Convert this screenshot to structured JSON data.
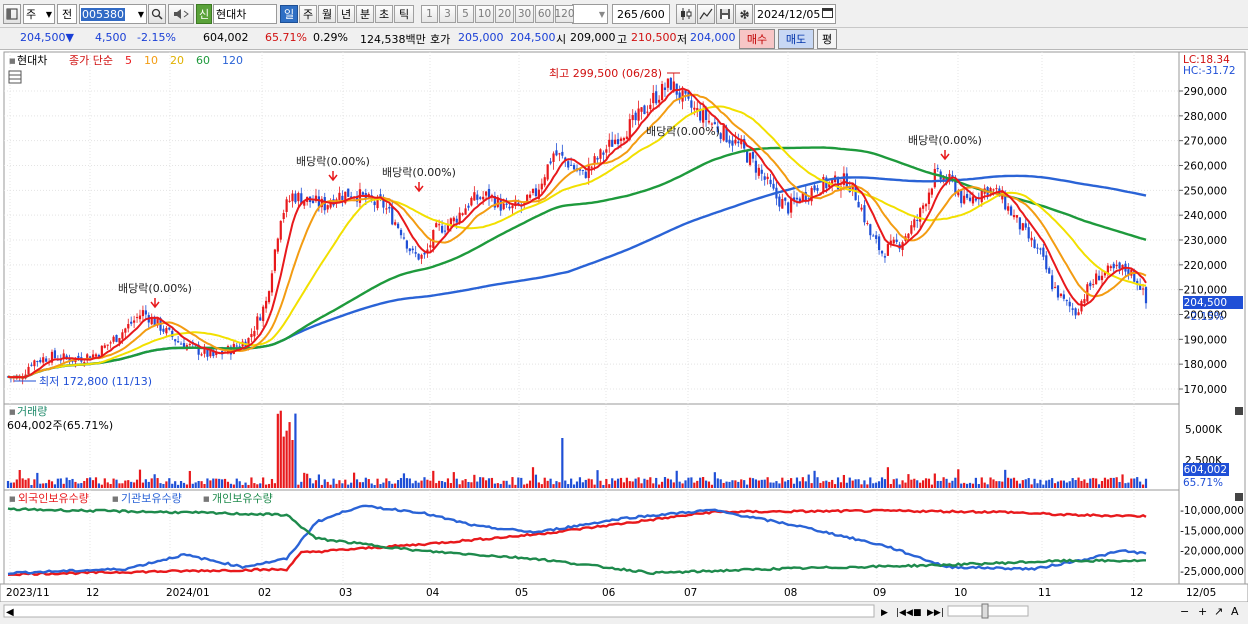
{
  "toolbar": {
    "type_label": "주",
    "prev_label": "전",
    "stock_code": "005380",
    "badge": "신",
    "stock_name": "현대차",
    "periods": [
      "일",
      "주",
      "월",
      "년",
      "분",
      "초",
      "틱"
    ],
    "intervals": [
      "1",
      "3",
      "5",
      "10",
      "20",
      "30",
      "60",
      "120"
    ],
    "count": "265",
    "count_total": "/600",
    "date": "2024/12/05"
  },
  "quote": {
    "price": "204,500",
    "change": "4,500",
    "change_pct": "-2.15%",
    "volume": "604,002",
    "vol_ratio": "65.71%",
    "turnover_pct": "0.29%",
    "amount": "124,538백만",
    "ask_label": "호가",
    "ask1": "205,000",
    "bid1": "204,500",
    "open_label": "시",
    "open": "209,000",
    "high_label": "고",
    "high": "210,500",
    "low_label": "저",
    "low": "204,000",
    "buy_label": "매수",
    "sell_label": "매도",
    "eval_label": "평"
  },
  "price_pane": {
    "name": "현대차",
    "legend_label": "종가 단순",
    "ma": [
      {
        "period": "5",
        "color": "#e8191c"
      },
      {
        "period": "10",
        "color": "#f39c12"
      },
      {
        "period": "20",
        "color": "#f2e000"
      },
      {
        "period": "60",
        "color": "#1e9a3c"
      },
      {
        "period": "120",
        "color": "#2a63d6"
      }
    ],
    "lc": "LC:18.34",
    "hc": "HC:-31.72",
    "y_ticks": [
      "290,000",
      "280,000",
      "270,000",
      "260,000",
      "250,000",
      "240,000",
      "230,000",
      "220,000",
      "210,000",
      "200,000",
      "190,000",
      "180,000",
      "170,000"
    ],
    "current_price": "204,500",
    "current_change": "-2.15%",
    "high_note": "최고 299,500 (06/28)",
    "low_note": "최저 172,800 (11/13)",
    "dividend_label": "배당락(0.00%)"
  },
  "volume_pane": {
    "title": "거래량",
    "summary": "604,002주(65.71%)",
    "y_ticks": [
      "5,000K",
      "2,500K"
    ],
    "current": "604,002",
    "current_pct": "65.71%"
  },
  "holdings_pane": {
    "series": [
      {
        "name": "외국인보유수량",
        "color": "#e8191c"
      },
      {
        "name": "기관보유수량",
        "color": "#2a63d6"
      },
      {
        "name": "개인보유수량",
        "color": "#1e8a4c"
      }
    ],
    "y_ticks": [
      "-10,000,000",
      "-15,000,000",
      "-20,000,000",
      "-25,000,000"
    ]
  },
  "x_axis": [
    "2023/11",
    "12",
    "2024/01",
    "02",
    "03",
    "04",
    "05",
    "06",
    "07",
    "08",
    "09",
    "10",
    "11",
    "12",
    "12/05"
  ],
  "chart_data": {
    "type": "candlestick",
    "period": "weekly",
    "ylim": [
      170000,
      300000
    ],
    "annotations": [
      {
        "label": "최고 299,500 (06/28)",
        "value": 299500
      },
      {
        "label": "최저 172,800 (11/13)",
        "value": 172800
      }
    ],
    "last_close": 204500
  }
}
